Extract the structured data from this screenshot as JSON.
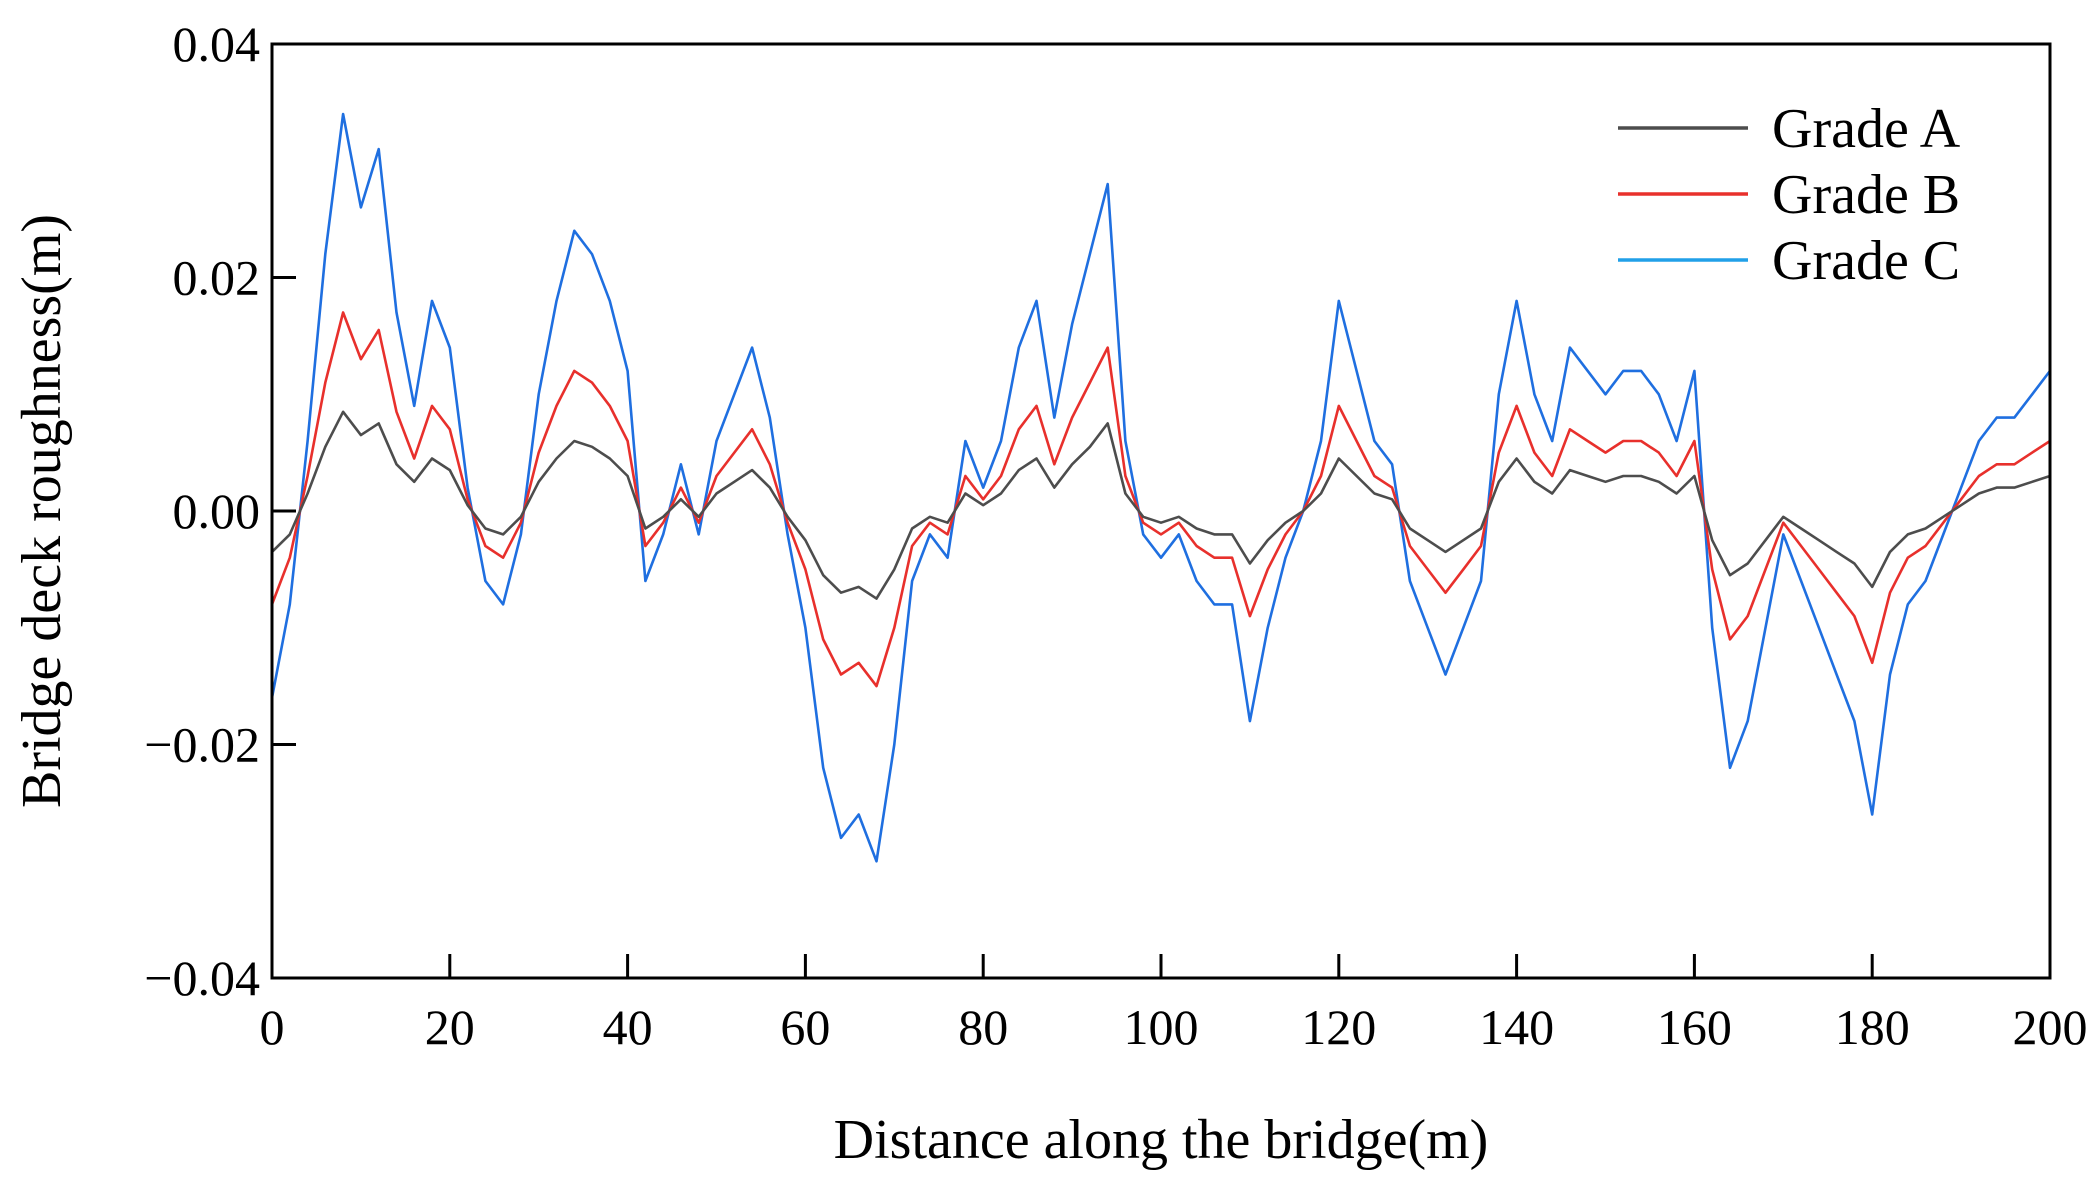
{
  "chart_data": {
    "type": "line",
    "title": "",
    "xlabel": "Distance along the bridge(m)",
    "ylabel": "Bridge deck roughness(m)",
    "xlim": [
      0,
      200
    ],
    "ylim": [
      -0.04,
      0.04
    ],
    "xticks": [
      {
        "value": 0,
        "label": "0"
      },
      {
        "value": 20,
        "label": "20"
      },
      {
        "value": 40,
        "label": "40"
      },
      {
        "value": 60,
        "label": "60"
      },
      {
        "value": 80,
        "label": "80"
      },
      {
        "value": 100,
        "label": "100"
      },
      {
        "value": 120,
        "label": "120"
      },
      {
        "value": 140,
        "label": "140"
      },
      {
        "value": 160,
        "label": "160"
      },
      {
        "value": 180,
        "label": "180"
      },
      {
        "value": 200,
        "label": "200"
      }
    ],
    "yticks": [
      {
        "value": 0.04,
        "label": "0.04"
      },
      {
        "value": 0.02,
        "label": "0.02"
      },
      {
        "value": 0.0,
        "label": "0.00"
      },
      {
        "value": -0.02,
        "label": "−0.02"
      },
      {
        "value": -0.04,
        "label": "−0.04"
      }
    ],
    "grid": false,
    "legend_position": "top-right",
    "x": [
      0,
      2,
      4,
      6,
      8,
      10,
      12,
      14,
      16,
      18,
      20,
      22,
      24,
      26,
      28,
      30,
      32,
      34,
      36,
      38,
      40,
      42,
      44,
      46,
      48,
      50,
      52,
      54,
      56,
      58,
      60,
      62,
      64,
      66,
      68,
      70,
      72,
      74,
      76,
      78,
      80,
      82,
      84,
      86,
      88,
      90,
      92,
      94,
      96,
      98,
      100,
      102,
      104,
      106,
      108,
      110,
      112,
      114,
      116,
      118,
      120,
      122,
      124,
      126,
      128,
      130,
      132,
      134,
      136,
      138,
      140,
      142,
      144,
      146,
      148,
      150,
      152,
      154,
      156,
      158,
      160,
      162,
      164,
      166,
      168,
      170,
      172,
      174,
      176,
      178,
      180,
      182,
      184,
      186,
      188,
      190,
      192,
      194,
      196,
      198,
      200
    ],
    "series": [
      {
        "name": "Grade A",
        "color": "#4d4d4d",
        "values": [
          -0.0035,
          -0.002,
          0.0015,
          0.0055,
          0.0085,
          0.0065,
          0.0075,
          0.004,
          0.0025,
          0.0045,
          0.0035,
          0.0005,
          -0.0015,
          -0.002,
          -0.0005,
          0.0025,
          0.0045,
          0.006,
          0.0055,
          0.0045,
          0.003,
          -0.0015,
          -0.0005,
          0.001,
          -0.0005,
          0.0015,
          0.0025,
          0.0035,
          0.002,
          -0.0005,
          -0.0025,
          -0.0055,
          -0.007,
          -0.0065,
          -0.0075,
          -0.005,
          -0.0015,
          -0.0005,
          -0.001,
          0.0015,
          0.0005,
          0.0015,
          0.0035,
          0.0045,
          0.002,
          0.004,
          0.0055,
          0.0075,
          0.0015,
          -0.0005,
          -0.001,
          -0.0005,
          -0.0015,
          -0.002,
          -0.002,
          -0.0045,
          -0.0025,
          -0.001,
          0.0,
          0.0015,
          0.0045,
          0.003,
          0.0015,
          0.001,
          -0.0015,
          -0.0025,
          -0.0035,
          -0.0025,
          -0.0015,
          0.0025,
          0.0045,
          0.0025,
          0.0015,
          0.0035,
          0.003,
          0.0025,
          0.003,
          0.003,
          0.0025,
          0.0015,
          0.003,
          -0.0025,
          -0.0055,
          -0.0045,
          -0.0025,
          -0.0005,
          -0.0015,
          -0.0025,
          -0.0035,
          -0.0045,
          -0.0065,
          -0.0035,
          -0.002,
          -0.0015,
          -0.0005,
          0.0005,
          0.0015,
          0.002,
          0.002,
          0.0025,
          0.003
        ]
      },
      {
        "name": "Grade B",
        "color": "#e8302c",
        "values": [
          -0.008,
          -0.004,
          0.003,
          0.011,
          0.017,
          0.013,
          0.0155,
          0.0085,
          0.0045,
          0.009,
          0.007,
          0.001,
          -0.003,
          -0.004,
          -0.001,
          0.005,
          0.009,
          0.012,
          0.011,
          0.009,
          0.006,
          -0.003,
          -0.001,
          0.002,
          -0.001,
          0.003,
          0.005,
          0.007,
          0.004,
          -0.001,
          -0.005,
          -0.011,
          -0.014,
          -0.013,
          -0.015,
          -0.01,
          -0.003,
          -0.001,
          -0.002,
          0.003,
          0.001,
          0.003,
          0.007,
          0.009,
          0.004,
          0.008,
          0.011,
          0.014,
          0.003,
          -0.001,
          -0.002,
          -0.001,
          -0.003,
          -0.004,
          -0.004,
          -0.009,
          -0.005,
          -0.002,
          0.0,
          0.003,
          0.009,
          0.006,
          0.003,
          0.002,
          -0.003,
          -0.005,
          -0.007,
          -0.005,
          -0.003,
          0.005,
          0.009,
          0.005,
          0.003,
          0.007,
          0.006,
          0.005,
          0.006,
          0.006,
          0.005,
          0.003,
          0.006,
          -0.005,
          -0.011,
          -0.009,
          -0.005,
          -0.001,
          -0.003,
          -0.005,
          -0.007,
          -0.009,
          -0.013,
          -0.007,
          -0.004,
          -0.003,
          -0.001,
          0.001,
          0.003,
          0.004,
          0.004,
          0.005,
          0.006
        ]
      },
      {
        "name": "Grade C",
        "color": "#1f6fe0",
        "values": [
          -0.016,
          -0.008,
          0.006,
          0.022,
          0.034,
          0.026,
          0.031,
          0.017,
          0.009,
          0.018,
          0.014,
          0.002,
          -0.006,
          -0.008,
          -0.002,
          0.01,
          0.018,
          0.024,
          0.022,
          0.018,
          0.012,
          -0.006,
          -0.002,
          0.004,
          -0.002,
          0.006,
          0.01,
          0.014,
          0.008,
          -0.002,
          -0.01,
          -0.022,
          -0.028,
          -0.026,
          -0.03,
          -0.02,
          -0.006,
          -0.002,
          -0.004,
          0.006,
          0.002,
          0.006,
          0.014,
          0.018,
          0.008,
          0.016,
          0.022,
          0.028,
          0.006,
          -0.002,
          -0.004,
          -0.002,
          -0.006,
          -0.008,
          -0.008,
          -0.018,
          -0.01,
          -0.004,
          0.0,
          0.006,
          0.018,
          0.012,
          0.006,
          0.004,
          -0.006,
          -0.01,
          -0.014,
          -0.01,
          -0.006,
          0.01,
          0.018,
          0.01,
          0.006,
          0.014,
          0.012,
          0.01,
          0.012,
          0.012,
          0.01,
          0.006,
          0.012,
          -0.01,
          -0.022,
          -0.018,
          -0.01,
          -0.002,
          -0.006,
          -0.01,
          -0.014,
          -0.018,
          -0.026,
          -0.014,
          -0.008,
          -0.006,
          -0.002,
          0.002,
          0.006,
          0.008,
          0.008,
          0.01,
          0.012
        ]
      }
    ]
  }
}
